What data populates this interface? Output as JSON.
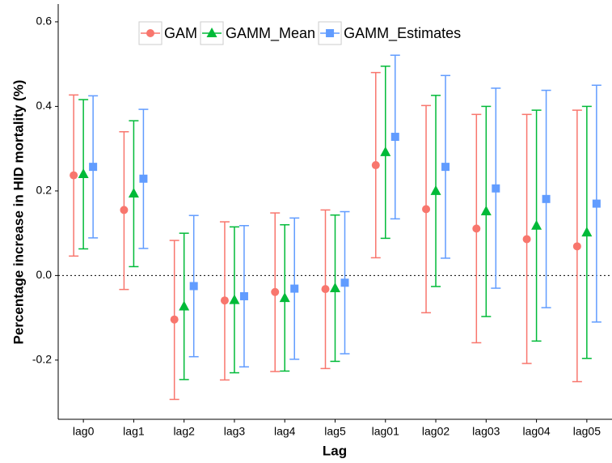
{
  "chart_data": {
    "type": "errorbar",
    "xlabel": "Lag",
    "ylabel": "Percentage increase in HID mortality (%)",
    "categories": [
      "lag0",
      "lag1",
      "lag2",
      "lag3",
      "lag4",
      "lag5",
      "lag01",
      "lag02",
      "lag03",
      "lag04",
      "lag05"
    ],
    "series": [
      {
        "name": "GAM",
        "color": "#f8766d",
        "marker": "circle",
        "values": [
          0.237,
          0.155,
          -0.104,
          -0.059,
          -0.039,
          -0.032,
          0.261,
          0.157,
          0.111,
          0.086,
          0.069
        ],
        "lower": [
          0.046,
          -0.033,
          -0.293,
          -0.247,
          -0.227,
          -0.22,
          0.042,
          -0.088,
          -0.159,
          -0.208,
          -0.251
        ],
        "upper": [
          0.427,
          0.34,
          0.083,
          0.127,
          0.148,
          0.155,
          0.48,
          0.402,
          0.381,
          0.381,
          0.391
        ]
      },
      {
        "name": "GAMM_Mean",
        "color": "#00ba38",
        "marker": "triangle",
        "values": [
          0.24,
          0.194,
          -0.073,
          -0.058,
          -0.053,
          -0.03,
          0.292,
          0.2,
          0.152,
          0.118,
          0.102
        ],
        "lower": [
          0.063,
          0.021,
          -0.246,
          -0.23,
          -0.226,
          -0.203,
          0.088,
          -0.026,
          -0.097,
          -0.155,
          -0.196
        ],
        "upper": [
          0.416,
          0.366,
          0.1,
          0.115,
          0.12,
          0.143,
          0.495,
          0.426,
          0.4,
          0.391,
          0.4
        ]
      },
      {
        "name": "GAMM_Estimates",
        "color": "#619cff",
        "marker": "square",
        "values": [
          0.257,
          0.229,
          -0.025,
          -0.049,
          -0.031,
          -0.017,
          0.328,
          0.257,
          0.206,
          0.181,
          0.17
        ],
        "lower": [
          0.089,
          0.064,
          -0.192,
          -0.216,
          -0.198,
          -0.185,
          0.134,
          0.041,
          -0.03,
          -0.076,
          -0.11
        ],
        "upper": [
          0.425,
          0.393,
          0.142,
          0.118,
          0.136,
          0.151,
          0.521,
          0.473,
          0.443,
          0.438,
          0.45
        ]
      }
    ],
    "ylim": [
      -0.34,
      0.642
    ],
    "yticks": [
      -0.2,
      {
        "value": 0,
        "label": "0.0"
      },
      0.2,
      0.4,
      0.6
    ],
    "reference_line": 0,
    "grid": false,
    "legend": "top"
  }
}
